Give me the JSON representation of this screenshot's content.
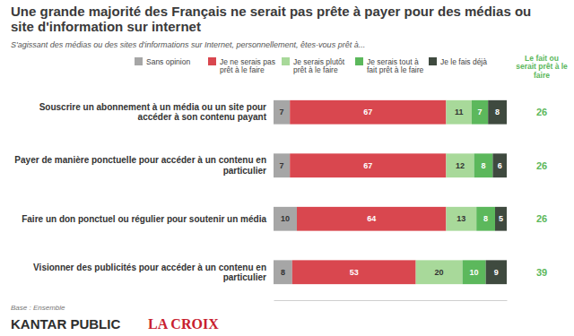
{
  "chart_data": {
    "type": "bar",
    "orientation": "horizontal",
    "stacked": true,
    "data_labels": true,
    "tick_labels": false,
    "title": "Une grande majorité des Français ne serait pas prête à payer pour des médias ou site d'information sur internet",
    "subtitle": "S'agissant des médias ou des sites d'informations sur Internet, personnellement, êtes-vous prêt à...",
    "categories": [
      "Souscrire un abonnement à un média ou un site pour accéder à son contenu payant",
      "Payer de manière ponctuelle pour accéder à un contenu en particulier",
      "Faire un don ponctuel ou régulier pour soutenir un média",
      "Visionner des publicités pour accéder à un contenu en particulier"
    ],
    "series": [
      {
        "name": "Sans opinion",
        "color": "#a6a6a6",
        "values": [
          7,
          7,
          10,
          8
        ]
      },
      {
        "name": "Je ne serais pas prêt à le faire",
        "color": "#d9474f",
        "values": [
          67,
          67,
          64,
          53
        ]
      },
      {
        "name": "Je serais plutôt prêt à le faire",
        "color": "#a8d99a",
        "values": [
          11,
          12,
          13,
          20
        ]
      },
      {
        "name": "Je serais tout à fait prêt à le faire",
        "color": "#5cb85c",
        "values": [
          7,
          8,
          8,
          10
        ]
      },
      {
        "name": "Je le fais déjà",
        "color": "#3f4a3f",
        "values": [
          8,
          6,
          5,
          9
        ]
      }
    ],
    "totals_label": "Le fait ou serait prêt à le faire",
    "totals": [
      26,
      26,
      26,
      39
    ],
    "xlim": [
      0,
      100
    ],
    "xticks": [],
    "annotations": [
      "Base : Ensemble",
      "KANTAR PUBLIC",
      "LA CROIX"
    ]
  }
}
